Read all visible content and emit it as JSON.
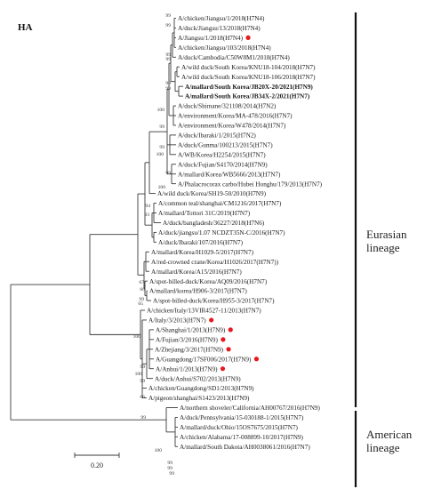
{
  "panel_label": "HA",
  "colors": {
    "line": "#3a3a3a",
    "highlight_dot": "#e8181f",
    "text": "#1a1a1a"
  },
  "taxa": [
    {
      "label": "A/chicken/Jiangsu/1/2018(H7N4)"
    },
    {
      "label": "A/duck/Jiangsu/13/2018(H7N4)"
    },
    {
      "label": "A/Jiangsu/1/2018(H7N4)",
      "highlight": true
    },
    {
      "label": "A/chicken/Jiangsu/103/2018(H7N4)"
    },
    {
      "label": "A/duck/Cambodia/C50W8M1/2018(H7N4)"
    },
    {
      "label": "A/wild duck/South Korea/KNU18-104/2018(H7N7)"
    },
    {
      "label": "A/wild duck/South Korea/KNU18-106/2018(H7N7)"
    },
    {
      "label": "A/mallard/South Korea/JB20X-20/2021(H7N9)",
      "bold": true
    },
    {
      "label": "A/mallard/South Korea/JB34X-2/2021(H7N7)",
      "bold": true
    },
    {
      "label": "A/duck/Shimane/321108/2014(H7N2)"
    },
    {
      "label": "A/environment/Korea/MA-478/2016(H7N7)"
    },
    {
      "label": "A/environment/Korea/W478/2014(H7N7)"
    },
    {
      "label": "A/duck/Ibaraki/1/2015(H7N2)"
    },
    {
      "label": "A/duck/Gunma/100213/2015(H7N7)"
    },
    {
      "label": "A/WB/Korea/H2254/2015(H7N7)"
    },
    {
      "label": "A/duck/Fujian/S4170/2014(H7N9)"
    },
    {
      "label": "A/mallard/Korea/WB5666/2013(H7N7)"
    },
    {
      "label": "A/Phalacrocorax carbo/Hubei Honghu/179/2013(H7N7)"
    },
    {
      "label": "A/wild duck/Korea/SH19-50/2010(H7N9)"
    },
    {
      "label": "A/common teal/shanghai/CM1216/2017(H7N7)"
    },
    {
      "label": "A/mallard/Tottori 31C/2019(H7N7)"
    },
    {
      "label": "A/duck/bangladesh/36227/2018(H7N6)"
    },
    {
      "label": "A/duck/jiangsu/1.07 NCDZT35N-C/2016(H7N7)"
    },
    {
      "label": "A/duck/Ibaraki/107/2016(H7N7)"
    },
    {
      "label": "A/mallard/Korea/H1029-5/2017(H7N7)"
    },
    {
      "label": "A/red-crowned crane/Korea/H1026/2017(H7N7))"
    },
    {
      "label": "A/mallard/Korea/A15/2016(H7N7)"
    },
    {
      "label": "A/spot-billed-duck/Korea/AQ09/2016(H7N7)"
    },
    {
      "label": "A/mallard/korea/H906-3/2017(H7N7)"
    },
    {
      "label": "A/spot-billed-duck/Korea/H955-3/2017(H7N7)"
    },
    {
      "label": "A/chicken/Italy/13VIR4527-11/2013(H7N7)"
    },
    {
      "label": "A/Italy/3/2013(H7N7)",
      "highlight": true
    },
    {
      "label": "A/Shanghai/1/2013(H7N9)",
      "highlight": true
    },
    {
      "label": "A/Fujian/3/2016(H7N9)",
      "highlight": true
    },
    {
      "label": "A/Zhejiang/3/2017(H7N9)",
      "highlight": true
    },
    {
      "label": "A/Guangdong/17SF006/2017(H7N9)",
      "highlight": true
    },
    {
      "label": "A/Anhui/1/2013(H7N9)",
      "highlight": true
    },
    {
      "label": "A/duck/Anhui/S702/2013(H7N9)"
    },
    {
      "label": "A/chicken/Guangdong/SD1/2013(H7N9)"
    },
    {
      "label": "A/pigeon/shanghai/S1423/2013(H7N9)"
    },
    {
      "label": "A/northern shoveler/California/AH00767/2016(H7N9)"
    },
    {
      "label": "A/duck/Pennsylvania/15-030188-1/2015(H7N7)"
    },
    {
      "label": "A/mallard/duck/Ohio/15OS7675/2015(H7N7)"
    },
    {
      "label": "A/chicken/Alabama/17-008899-10/2017(H7N9)"
    },
    {
      "label": "A/mallard/South Dakota/AH0038061/2016(H7N7)"
    }
  ],
  "support_values": [
    {
      "value": "99"
    },
    {
      "value": "99"
    },
    {
      "value": "99"
    },
    {
      "value": "99"
    },
    {
      "value": "99"
    },
    {
      "value": "99"
    },
    {
      "value": "100"
    },
    {
      "value": "99"
    },
    {
      "value": "99"
    },
    {
      "value": "100"
    },
    {
      "value": "99"
    },
    {
      "value": "100"
    },
    {
      "value": "94"
    },
    {
      "value": "93"
    },
    {
      "value": "66"
    },
    {
      "value": "67"
    },
    {
      "value": "99"
    },
    {
      "value": "65"
    },
    {
      "value": "100"
    },
    {
      "value": "99"
    },
    {
      "value": "100"
    },
    {
      "value": "99"
    },
    {
      "value": "66"
    },
    {
      "value": "99"
    },
    {
      "value": "100"
    },
    {
      "value": "99"
    },
    {
      "value": "99"
    },
    {
      "value": "99"
    }
  ],
  "clades": [
    {
      "name": "Eurasian\nlineage",
      "lines": [
        "Eurasian",
        "lineage"
      ]
    },
    {
      "name": "American\nlineage",
      "lines": [
        "American",
        "lineage"
      ]
    }
  ],
  "scale_bar": {
    "label": "0.20"
  }
}
